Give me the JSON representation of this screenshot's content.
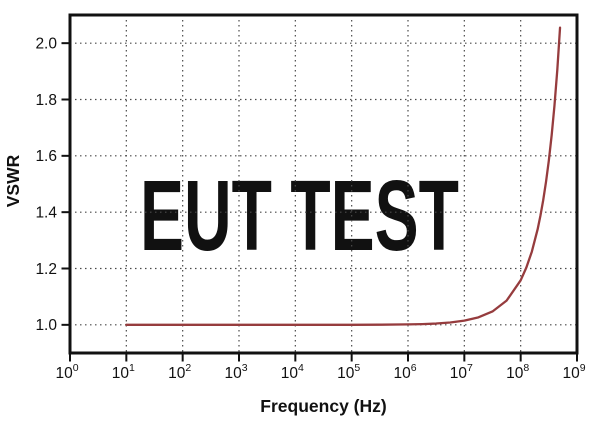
{
  "figure": {
    "watermark": "EUT TEST"
  },
  "colors": {
    "background": "#ffffff",
    "frame": "#111111",
    "grid": "#4a4a4a",
    "tick": "#111111",
    "text": "#111111",
    "curve": "#963c3e",
    "watermark": "#c3d9ee"
  },
  "chart_data": {
    "type": "line",
    "title": "",
    "xlabel": "Frequency (Hz)",
    "ylabel": "VSWR",
    "x_scale": "log",
    "y_scale": "linear",
    "xlim": [
      1,
      1000000000
    ],
    "ylim": [
      0.9,
      2.1
    ],
    "grid": "dotted gridlines at every major tick, both axes",
    "legend": "none",
    "watermark": "EUT TEST",
    "x_tick_base": "10",
    "x_tick_exponents": [
      "0",
      "1",
      "2",
      "3",
      "4",
      "5",
      "6",
      "7",
      "8",
      "9"
    ],
    "x_ticks": [
      1,
      10,
      100,
      1000,
      10000,
      100000,
      1000000,
      10000000,
      100000000,
      1000000000
    ],
    "y_ticks": [
      1.0,
      1.2,
      1.4,
      1.6,
      1.8,
      2.0
    ],
    "y_tick_labels": [
      "1.0",
      "1.2",
      "1.4",
      "1.6",
      "1.8",
      "2.0"
    ],
    "series": [
      {
        "name": "VSWR",
        "color": "#963c3e",
        "x": [
          10,
          100,
          1000,
          10000,
          100000,
          316000,
          1000000,
          1780000,
          3160000,
          5620000,
          10000000,
          17800000,
          31600000,
          56200000,
          100000000,
          126000000,
          158000000,
          200000000,
          224000000,
          251000000,
          282000000,
          316000000,
          355000000,
          398000000,
          447000000,
          500000000
        ],
        "y": [
          1.0,
          1.0,
          1.0,
          1.0,
          1.0,
          1.0005,
          1.0015,
          1.0026,
          1.0046,
          1.0083,
          1.0148,
          1.0265,
          1.0474,
          1.0859,
          1.158,
          1.203,
          1.26,
          1.339,
          1.387,
          1.442,
          1.508,
          1.583,
          1.673,
          1.778,
          1.905,
          2.055
        ]
      }
    ]
  }
}
